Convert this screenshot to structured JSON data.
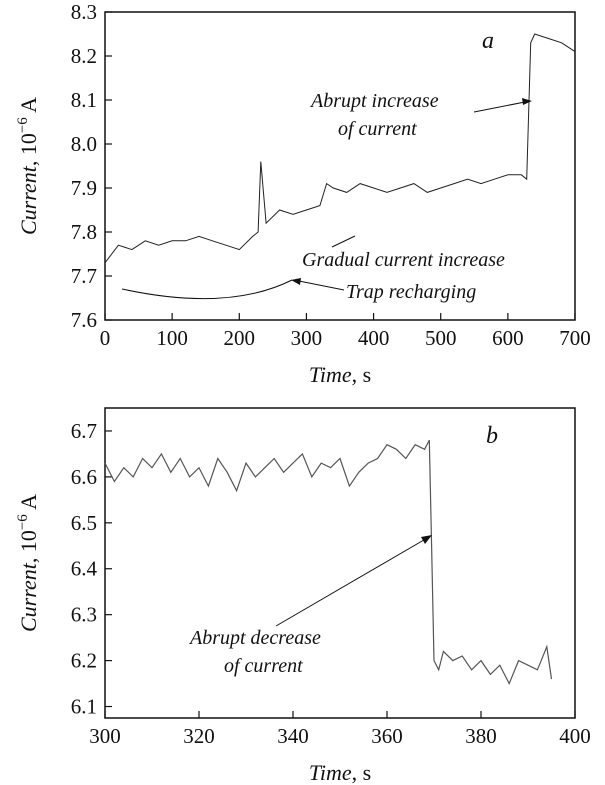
{
  "chart_data": [
    {
      "id": "a",
      "type": "line",
      "panel_label": "a",
      "xlabel_italic": "Time",
      "xlabel_unit": ", s",
      "ylabel_italic": "Current",
      "ylabel_unit": ", 10",
      "ylabel_exp": "−6",
      "ylabel_unit2": " A",
      "xlim": [
        0,
        700
      ],
      "ylim": [
        7.6,
        8.3
      ],
      "xticks": [
        "0",
        "100",
        "200",
        "300",
        "400",
        "500",
        "600",
        "700"
      ],
      "yticks": [
        "7.6",
        "7.7",
        "7.8",
        "7.9",
        "8.0",
        "8.1",
        "8.2",
        "8.3"
      ],
      "grid": false,
      "series": [
        {
          "x": [
            0,
            20,
            40,
            60,
            80,
            100,
            120,
            140,
            160,
            180,
            200,
            220,
            228,
            232,
            240,
            260,
            280,
            300,
            320,
            330,
            340,
            360,
            380,
            400,
            420,
            440,
            460,
            480,
            500,
            520,
            540,
            560,
            580,
            600,
            620,
            628,
            634,
            640,
            660,
            680,
            700
          ],
          "values": [
            7.73,
            7.77,
            7.76,
            7.78,
            7.77,
            7.78,
            7.78,
            7.79,
            7.78,
            7.77,
            7.76,
            7.79,
            7.8,
            7.96,
            7.82,
            7.85,
            7.84,
            7.85,
            7.86,
            7.91,
            7.9,
            7.89,
            7.91,
            7.9,
            7.89,
            7.9,
            7.91,
            7.89,
            7.9,
            7.91,
            7.92,
            7.91,
            7.92,
            7.93,
            7.93,
            7.92,
            8.23,
            8.25,
            8.24,
            8.23,
            8.21
          ]
        }
      ],
      "annotations": [
        {
          "id": "abrupt_increase",
          "line1": "Abrupt increase",
          "line2": "of current"
        },
        {
          "id": "gradual",
          "text": "Gradual current increase"
        },
        {
          "id": "trap",
          "text": "Trap recharging"
        }
      ]
    },
    {
      "id": "b",
      "type": "line",
      "panel_label": "b",
      "xlabel_italic": "Time",
      "xlabel_unit": ", s",
      "ylabel_italic": "Current",
      "ylabel_unit": ", 10",
      "ylabel_exp": "−6",
      "ylabel_unit2": " A",
      "xlim": [
        300,
        400
      ],
      "ylim": [
        6.075,
        6.75
      ],
      "xticks": [
        "300",
        "320",
        "340",
        "360",
        "380",
        "400"
      ],
      "yticks": [
        "6.1",
        "6.2",
        "6.3",
        "6.4",
        "6.5",
        "6.6",
        "6.7"
      ],
      "grid": false,
      "series": [
        {
          "x": [
            300,
            302,
            304,
            306,
            308,
            310,
            312,
            314,
            316,
            318,
            320,
            322,
            324,
            326,
            328,
            330,
            332,
            334,
            336,
            338,
            340,
            342,
            344,
            346,
            348,
            350,
            352,
            354,
            356,
            358,
            360,
            362,
            364,
            366,
            368,
            369,
            369.5,
            370,
            371,
            372,
            374,
            376,
            378,
            380,
            382,
            384,
            386,
            388,
            390,
            392,
            394,
            395
          ],
          "values": [
            6.63,
            6.59,
            6.62,
            6.6,
            6.64,
            6.62,
            6.65,
            6.61,
            6.64,
            6.6,
            6.62,
            6.58,
            6.64,
            6.61,
            6.57,
            6.63,
            6.6,
            6.62,
            6.64,
            6.61,
            6.63,
            6.65,
            6.6,
            6.63,
            6.62,
            6.64,
            6.58,
            6.61,
            6.63,
            6.64,
            6.67,
            6.66,
            6.64,
            6.67,
            6.66,
            6.68,
            6.45,
            6.2,
            6.18,
            6.22,
            6.2,
            6.21,
            6.18,
            6.2,
            6.17,
            6.19,
            6.15,
            6.2,
            6.19,
            6.18,
            6.23,
            6.16
          ]
        }
      ],
      "annotations": [
        {
          "id": "abrupt_decrease",
          "line1": "Abrupt decrease",
          "line2": "of current"
        }
      ]
    }
  ]
}
